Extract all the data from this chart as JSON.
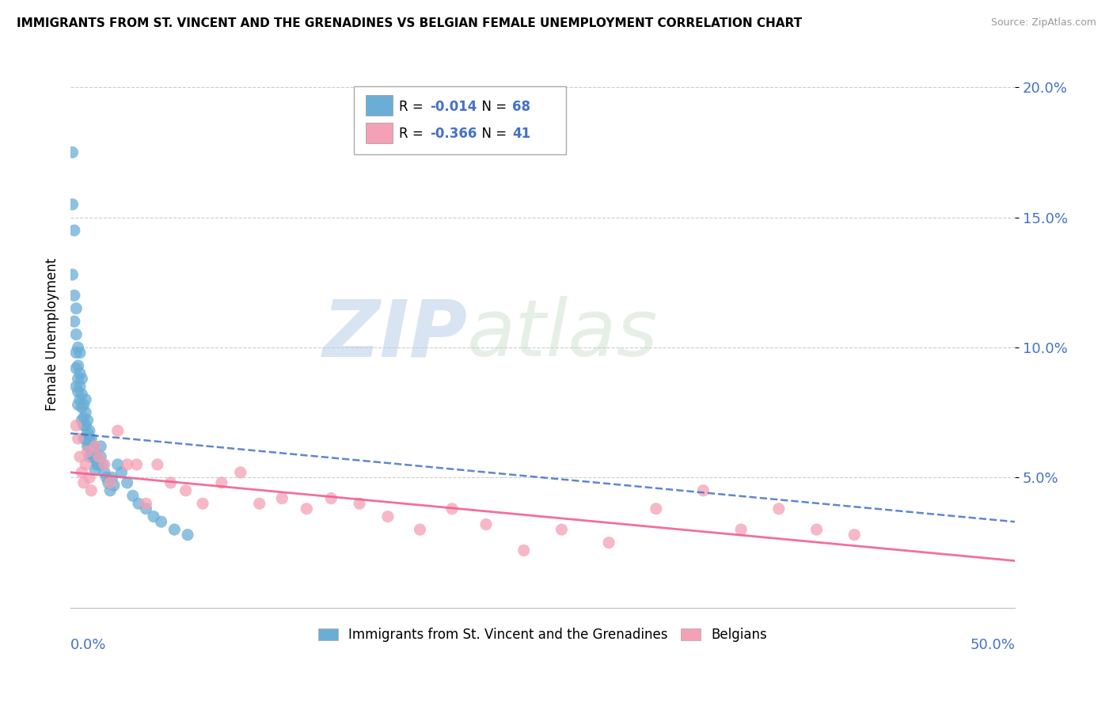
{
  "title": "IMMIGRANTS FROM ST. VINCENT AND THE GRENADINES VS BELGIAN FEMALE UNEMPLOYMENT CORRELATION CHART",
  "source": "Source: ZipAtlas.com",
  "ylabel": "Female Unemployment",
  "blue_color": "#6aaed6",
  "pink_color": "#f4a0b5",
  "blue_line_color": "#4472c4",
  "pink_line_color": "#f06090",
  "xlim": [
    0.0,
    0.5
  ],
  "ylim": [
    0.0,
    0.21
  ],
  "ytick_vals": [
    0.05,
    0.1,
    0.15,
    0.2
  ],
  "ytick_labels": [
    "5.0%",
    "10.0%",
    "15.0%",
    "20.0%"
  ],
  "blue_R": -0.014,
  "blue_N": 68,
  "pink_R": -0.366,
  "pink_N": 41,
  "watermark_zip": "ZIP",
  "watermark_atlas": "atlas",
  "blue_scatter_x": [
    0.001,
    0.001,
    0.001,
    0.002,
    0.002,
    0.002,
    0.003,
    0.003,
    0.003,
    0.003,
    0.003,
    0.004,
    0.004,
    0.004,
    0.004,
    0.004,
    0.005,
    0.005,
    0.005,
    0.005,
    0.006,
    0.006,
    0.006,
    0.006,
    0.007,
    0.007,
    0.007,
    0.007,
    0.008,
    0.008,
    0.008,
    0.008,
    0.009,
    0.009,
    0.009,
    0.01,
    0.01,
    0.01,
    0.01,
    0.011,
    0.011,
    0.012,
    0.012,
    0.013,
    0.013,
    0.013,
    0.014,
    0.014,
    0.015,
    0.016,
    0.016,
    0.017,
    0.018,
    0.019,
    0.02,
    0.021,
    0.022,
    0.023,
    0.025,
    0.027,
    0.03,
    0.033,
    0.036,
    0.04,
    0.044,
    0.048,
    0.055,
    0.062
  ],
  "blue_scatter_y": [
    0.175,
    0.155,
    0.128,
    0.145,
    0.12,
    0.11,
    0.115,
    0.105,
    0.098,
    0.092,
    0.085,
    0.1,
    0.093,
    0.088,
    0.083,
    0.078,
    0.098,
    0.09,
    0.085,
    0.08,
    0.088,
    0.082,
    0.077,
    0.072,
    0.078,
    0.073,
    0.07,
    0.065,
    0.08,
    0.075,
    0.07,
    0.065,
    0.072,
    0.067,
    0.062,
    0.068,
    0.065,
    0.062,
    0.058,
    0.065,
    0.06,
    0.062,
    0.058,
    0.06,
    0.057,
    0.053,
    0.058,
    0.055,
    0.055,
    0.062,
    0.058,
    0.055,
    0.052,
    0.05,
    0.048,
    0.045,
    0.05,
    0.047,
    0.055,
    0.052,
    0.048,
    0.043,
    0.04,
    0.038,
    0.035,
    0.033,
    0.03,
    0.028
  ],
  "pink_scatter_x": [
    0.003,
    0.004,
    0.005,
    0.006,
    0.007,
    0.008,
    0.009,
    0.01,
    0.011,
    0.013,
    0.015,
    0.018,
    0.021,
    0.025,
    0.03,
    0.035,
    0.04,
    0.046,
    0.053,
    0.061,
    0.07,
    0.08,
    0.09,
    0.1,
    0.112,
    0.125,
    0.138,
    0.153,
    0.168,
    0.185,
    0.202,
    0.22,
    0.24,
    0.26,
    0.285,
    0.31,
    0.335,
    0.355,
    0.375,
    0.395,
    0.415
  ],
  "pink_scatter_y": [
    0.07,
    0.065,
    0.058,
    0.052,
    0.048,
    0.055,
    0.06,
    0.05,
    0.045,
    0.062,
    0.058,
    0.055,
    0.048,
    0.068,
    0.055,
    0.055,
    0.04,
    0.055,
    0.048,
    0.045,
    0.04,
    0.048,
    0.052,
    0.04,
    0.042,
    0.038,
    0.042,
    0.04,
    0.035,
    0.03,
    0.038,
    0.032,
    0.022,
    0.03,
    0.025,
    0.038,
    0.045,
    0.03,
    0.038,
    0.03,
    0.028
  ],
  "blue_trendline_x0": 0.0,
  "blue_trendline_x1": 0.5,
  "blue_trendline_y0": 0.067,
  "blue_trendline_y1": 0.033,
  "pink_trendline_x0": 0.0,
  "pink_trendline_x1": 0.5,
  "pink_trendline_y0": 0.052,
  "pink_trendline_y1": 0.018
}
